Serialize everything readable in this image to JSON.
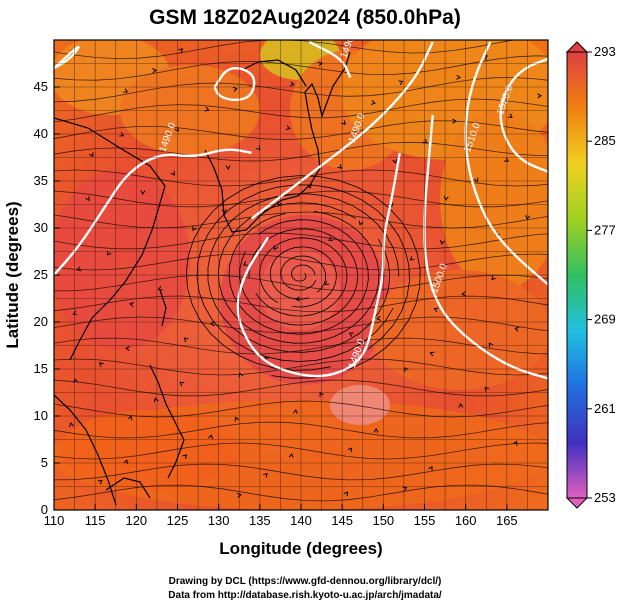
{
  "title": "GSM 18Z02Aug2024 (850.0hPa)",
  "x_axis": {
    "label": "Longitude (degrees)",
    "min": 110,
    "max": 170,
    "ticks": [
      110,
      115,
      120,
      125,
      130,
      135,
      140,
      145,
      150,
      155,
      160,
      165
    ]
  },
  "y_axis": {
    "label": "Latitude  (degrees)",
    "min": 0,
    "max": 50,
    "ticks": [
      0,
      5,
      10,
      15,
      20,
      25,
      30,
      35,
      40,
      45
    ]
  },
  "colorbar": {
    "min": 253,
    "max": 293,
    "ticks": [
      293,
      285,
      277,
      269,
      261,
      253
    ],
    "colors": [
      "#e060c0",
      "#4030c0",
      "#2070e0",
      "#20c0e0",
      "#30c060",
      "#a0d020",
      "#f0d020",
      "#f08010",
      "#e04040"
    ]
  },
  "contours": {
    "color": "#ffffff",
    "lines": [
      {
        "label": "1490.0",
        "points": [
          [
            110,
            25
          ],
          [
            113,
            28
          ],
          [
            116,
            32
          ],
          [
            119,
            36
          ],
          [
            123,
            38
          ],
          [
            127,
            37.5
          ],
          [
            131,
            38.5
          ],
          [
            134,
            38
          ]
        ]
      },
      {
        "label": "1490.0",
        "points": [
          [
            141,
            49.8
          ],
          [
            145,
            48
          ],
          [
            146,
            46
          ]
        ]
      },
      {
        "label": "1490.0",
        "points": [
          [
            134,
            31
          ],
          [
            137,
            33
          ],
          [
            140,
            35
          ],
          [
            143,
            37
          ],
          [
            146,
            39
          ],
          [
            150,
            42
          ],
          [
            154,
            46
          ],
          [
            156,
            49.8
          ]
        ]
      },
      {
        "label": "1490.0",
        "points": [
          [
            136,
            29
          ],
          [
            133,
            25
          ],
          [
            132,
            21
          ],
          [
            134,
            17
          ],
          [
            137,
            15
          ],
          [
            142,
            14
          ],
          [
            146,
            15
          ],
          [
            148,
            17
          ],
          [
            149,
            21
          ],
          [
            150,
            25
          ],
          [
            150,
            29
          ],
          [
            151,
            33
          ],
          [
            152,
            38
          ]
        ]
      },
      {
        "label": "1500.0",
        "points": [
          [
            156,
            42
          ],
          [
            155.5,
            37
          ],
          [
            155,
            32
          ],
          [
            155,
            27
          ],
          [
            156,
            23
          ],
          [
            158,
            20
          ],
          [
            162,
            17
          ],
          [
            166,
            15
          ],
          [
            170,
            14
          ]
        ]
      },
      {
        "label": "1510.0",
        "points": [
          [
            170,
            24
          ],
          [
            166,
            27
          ],
          [
            163,
            30
          ],
          [
            161,
            34
          ],
          [
            160,
            38
          ],
          [
            160,
            42
          ],
          [
            161,
            46
          ],
          [
            163,
            49.8
          ]
        ]
      },
      {
        "label": "1520.0",
        "points": [
          [
            170,
            36
          ],
          [
            167,
            37
          ],
          [
            165,
            39
          ],
          [
            164,
            42
          ],
          [
            165,
            45
          ],
          [
            167,
            47
          ],
          [
            170,
            48
          ]
        ]
      }
    ],
    "closed": [
      {
        "label": "",
        "points": [
          [
            129.5,
            45
          ],
          [
            131,
            47
          ],
          [
            133,
            47
          ],
          [
            134.5,
            46
          ],
          [
            134,
            44
          ],
          [
            132,
            43.5
          ],
          [
            130,
            44
          ]
        ]
      },
      {
        "label": "",
        "points": [
          [
            110,
            47
          ],
          [
            112,
            48
          ],
          [
            113.5,
            49.8
          ]
        ]
      }
    ]
  },
  "typhoon_center": {
    "lon": 140,
    "lat": 25
  },
  "credits": {
    "line1": "Drawing by DCL (https://www.gfd-dennou.org/library/dcl/)",
    "line2": "Data from http://database.rish.kyoto-u.ac.jp/arch/jmadata/"
  }
}
